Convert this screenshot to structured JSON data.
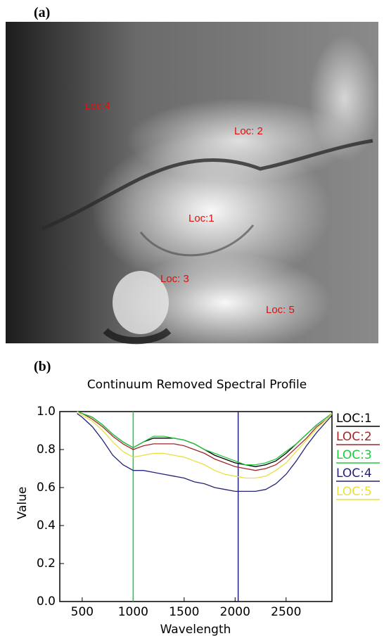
{
  "panel_a": {
    "label": "(a)",
    "locations": [
      "Loc:4",
      "Loc: 2",
      "Loc:1",
      "Loc: 3",
      "Loc: 5"
    ]
  },
  "chart_data": {
    "type": "line",
    "panel_label": "(b)",
    "title": "Continuum Removed Spectral Profile",
    "x_label": "Wavelength",
    "y_label": "Value",
    "x": [
      450,
      500,
      600,
      700,
      800,
      900,
      1000,
      1100,
      1200,
      1300,
      1400,
      1500,
      1600,
      1700,
      1800,
      1900,
      2000,
      2100,
      2200,
      2300,
      2400,
      2500,
      2600,
      2700,
      2800,
      2900,
      2950
    ],
    "series": [
      {
        "name": "LOC:1",
        "color": "#000000",
        "values": [
          1.0,
          0.99,
          0.97,
          0.93,
          0.88,
          0.84,
          0.81,
          0.84,
          0.86,
          0.86,
          0.86,
          0.85,
          0.83,
          0.8,
          0.77,
          0.75,
          0.73,
          0.72,
          0.71,
          0.72,
          0.74,
          0.78,
          0.83,
          0.88,
          0.93,
          0.97,
          0.99
        ]
      },
      {
        "name": "LOC:2",
        "color": "#a02828",
        "values": [
          1.0,
          0.99,
          0.96,
          0.92,
          0.87,
          0.83,
          0.8,
          0.82,
          0.83,
          0.83,
          0.83,
          0.82,
          0.8,
          0.78,
          0.75,
          0.73,
          0.71,
          0.7,
          0.69,
          0.7,
          0.72,
          0.76,
          0.81,
          0.86,
          0.92,
          0.96,
          0.99
        ]
      },
      {
        "name": "LOC:3",
        "color": "#22c840",
        "values": [
          1.0,
          0.99,
          0.97,
          0.93,
          0.88,
          0.84,
          0.81,
          0.84,
          0.87,
          0.87,
          0.86,
          0.85,
          0.83,
          0.8,
          0.78,
          0.76,
          0.74,
          0.72,
          0.72,
          0.73,
          0.75,
          0.79,
          0.83,
          0.88,
          0.93,
          0.97,
          0.99
        ]
      },
      {
        "name": "LOC:4",
        "color": "#23237a",
        "values": [
          0.99,
          0.97,
          0.92,
          0.85,
          0.77,
          0.72,
          0.69,
          0.69,
          0.68,
          0.67,
          0.66,
          0.65,
          0.63,
          0.62,
          0.6,
          0.59,
          0.58,
          0.58,
          0.58,
          0.59,
          0.62,
          0.67,
          0.74,
          0.82,
          0.89,
          0.95,
          0.98
        ]
      },
      {
        "name": "LOC:5",
        "color": "#e8e040",
        "values": [
          1.0,
          0.98,
          0.95,
          0.9,
          0.84,
          0.79,
          0.76,
          0.77,
          0.78,
          0.78,
          0.77,
          0.76,
          0.74,
          0.72,
          0.69,
          0.67,
          0.66,
          0.65,
          0.65,
          0.66,
          0.69,
          0.73,
          0.79,
          0.85,
          0.91,
          0.96,
          0.99
        ]
      }
    ],
    "vlines": [
      {
        "x": 1000,
        "color": "#22c840"
      },
      {
        "x": 2030,
        "color": "#23237a"
      }
    ],
    "xlim": [
      280,
      2950
    ],
    "xticks": [
      500,
      1000,
      1500,
      2000,
      2500
    ],
    "ylim": [
      0,
      1
    ],
    "yticks": [
      {
        "value": 0,
        "label": "0.0"
      },
      0.2,
      0.4,
      0.6,
      0.8,
      {
        "value": 1,
        "label": "1.0"
      }
    ],
    "grid": false,
    "legend": "right"
  }
}
